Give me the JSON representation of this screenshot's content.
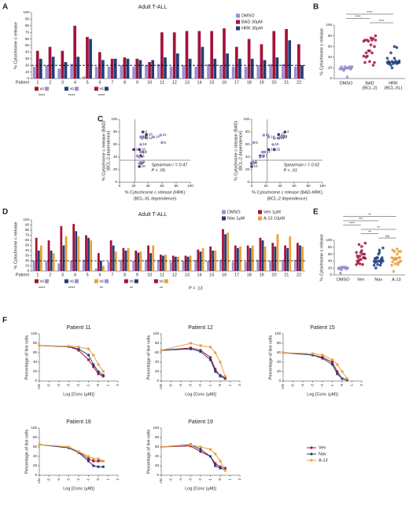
{
  "chart_data": [
    {
      "panel": "A",
      "type": "bar",
      "title": "Adult T-ALL",
      "ylabel": "% Cytochrome c release",
      "category_label": "Patient",
      "categories": [
        "1",
        "2",
        "3",
        "4",
        "5",
        "6",
        "7",
        "8",
        "9",
        "10",
        "11",
        "12",
        "13",
        "14",
        "15",
        "16",
        "17",
        "18",
        "19",
        "20",
        "21",
        "22"
      ],
      "series": [
        {
          "name": "DMSO",
          "color": "#9b8fd1",
          "values": [
            18,
            20,
            15,
            22,
            3,
            18,
            18,
            20,
            18,
            20,
            22,
            18,
            20,
            18,
            22,
            20,
            18,
            18,
            20,
            22,
            22,
            18
          ]
        },
        {
          "name": "BAD 30μM",
          "color": "#a3123a",
          "values": [
            42,
            48,
            42,
            80,
            63,
            40,
            30,
            32,
            30,
            25,
            70,
            70,
            72,
            72,
            72,
            76,
            48,
            60,
            52,
            72,
            75,
            52
          ]
        },
        {
          "name": "HRK 30μM",
          "color": "#1f3f7a",
          "values": [
            30,
            33,
            25,
            33,
            60,
            28,
            30,
            30,
            28,
            28,
            32,
            38,
            30,
            48,
            30,
            38,
            30,
            30,
            28,
            32,
            58,
            20
          ]
        }
      ],
      "threshold": 20,
      "ylim": [
        0,
        100
      ],
      "yticks": [
        0,
        10,
        20,
        30,
        40,
        50,
        60,
        70,
        80,
        90,
        100
      ],
      "comparison_label": "vs",
      "significance": [
        "****",
        "****",
        "****"
      ]
    },
    {
      "panel": "B",
      "type": "dot",
      "ylabel": "% Cytochrome c release",
      "categories": [
        "DMSO",
        "BAD",
        "HRK"
      ],
      "category_notes": [
        null,
        "(BCL-2)",
        "(BCL-XL)"
      ],
      "ylim": [
        0,
        100
      ],
      "yticks": [
        0,
        20,
        40,
        60,
        80,
        100
      ],
      "significance": [
        "****",
        "****",
        "****"
      ]
    },
    {
      "panel": "C",
      "type": "scatter",
      "xlabel": "% Cytochrome c release (HRK)",
      "xlabel_note": "(BCL-XL dependence)",
      "ylabel": "% Cytochrome c release (BAD)",
      "ylabel_note": "(BCL-2 dependence)",
      "xlim": [
        0,
        100
      ],
      "ylim": [
        0,
        100
      ],
      "xticks": [
        0,
        20,
        40,
        60,
        80,
        100
      ],
      "yticks": [
        0,
        20,
        40,
        60,
        80,
        100
      ],
      "annotations": [
        "Spearman r = 0.47",
        "P < .05"
      ]
    },
    {
      "type": "scatter",
      "xlabel": "% Cytochrome c release (BAD-HRK)",
      "xlabel_note": "(BCL-2 dependence)",
      "ylabel": "% Cytochrome c release (BAD)",
      "ylabel_note": "(BCL-2 dependence)",
      "x": [
        12,
        15,
        17,
        47,
        3,
        12,
        0,
        2,
        2,
        0,
        38,
        32,
        42,
        24,
        42,
        38,
        18,
        30,
        24,
        40,
        17,
        32
      ],
      "xlim": [
        0,
        100
      ],
      "ylim": [
        0,
        100
      ],
      "xticks": [
        0,
        20,
        40,
        60,
        80,
        100
      ],
      "yticks": [
        0,
        20,
        40,
        60,
        80,
        100
      ],
      "annotations": [
        "Spearman r = 0.62",
        "P < .01"
      ]
    },
    {
      "panel": "D",
      "type": "bar",
      "title": "Adult T-ALL",
      "ylabel": "% Cytochrome c release",
      "category_label": "Patient",
      "categories": [
        "1",
        "2",
        "3",
        "4",
        "5",
        "6",
        "7",
        "8",
        "9",
        "10",
        "11",
        "12",
        "13",
        "14",
        "15",
        "16",
        "17",
        "18",
        "19",
        "20",
        "21",
        "22"
      ],
      "series": [
        {
          "name": "DMSO",
          "color": "#9b8fd1",
          "values": [
            20,
            20,
            15,
            20,
            22,
            5,
            18,
            22,
            20,
            22,
            22,
            18,
            20,
            22,
            20,
            22,
            18,
            18,
            22,
            20,
            22,
            22
          ]
        },
        {
          "name": "Ven 1μM",
          "color": "#a3123a",
          "values": [
            65,
            60,
            88,
            92,
            70,
            35,
            60,
            45,
            40,
            50,
            32,
            30,
            30,
            42,
            48,
            82,
            50,
            50,
            65,
            55,
            50,
            55
          ]
        },
        {
          "name": "Nav 1μM",
          "color": "#1f3f7a",
          "values": [
            40,
            40,
            50,
            78,
            65,
            20,
            50,
            40,
            36,
            35,
            30,
            28,
            28,
            38,
            40,
            72,
            45,
            45,
            60,
            48,
            45,
            50
          ]
        },
        {
          "name": "A-13 10μM",
          "color": "#e8a03a",
          "values": [
            50,
            35,
            68,
            68,
            60,
            10,
            38,
            45,
            38,
            50,
            32,
            28,
            30,
            45,
            40,
            75,
            48,
            50,
            48,
            72,
            68,
            48
          ]
        }
      ],
      "threshold": 20,
      "ylim": [
        0,
        100
      ],
      "yticks": [
        0,
        10,
        20,
        30,
        40,
        50,
        60,
        70,
        80,
        90,
        100
      ],
      "comparison_label": "vs",
      "significance": [
        "****",
        "****",
        "**",
        "**",
        "**",
        "P = .13"
      ]
    },
    {
      "panel": "E",
      "type": "dot",
      "ylabel": "% Cytochrome c release",
      "categories": [
        "DMSO",
        "Ven",
        "Nav",
        "A-13"
      ],
      "ylim": [
        0,
        100
      ],
      "yticks": [
        0,
        20,
        40,
        60,
        80,
        100
      ],
      "significance": [
        "**",
        "***",
        "****",
        "**",
        "**",
        "ns"
      ]
    },
    {
      "panel": "F",
      "type": "line",
      "title": "Patient 11",
      "ylabel": "Percentage of live cells",
      "xlabel": "Log [Conc (μM)]",
      "x": [
        -6,
        -3,
        -2,
        -1,
        -0.5,
        0,
        0.5
      ],
      "xlim": [
        -6,
        2
      ],
      "xticks": [
        {
          "value": -6,
          "label": "UN"
        },
        -5,
        -4,
        -3,
        -2,
        -1,
        0,
        1,
        2
      ],
      "ylim": [
        0,
        100
      ],
      "yticks": [
        0,
        20,
        40,
        60,
        80,
        100
      ],
      "series": [
        {
          "color": "#a3123a",
          "values": [
            75,
            73,
            65,
            45,
            30,
            15,
            10
          ]
        },
        {
          "color": "#1f3f7a",
          "values": [
            75,
            73,
            68,
            55,
            35,
            20,
            12
          ]
        },
        {
          "color": "#e8a03a",
          "values": [
            75,
            74,
            72,
            68,
            55,
            35,
            20
          ]
        }
      ]
    },
    {
      "type": "line",
      "title": "Patient 12",
      "ylabel": "Percentage of live cells",
      "xlabel": "Log [Conc (μM)]",
      "x": [
        -6,
        -3,
        -2,
        -1,
        -0.5,
        0,
        0.5
      ],
      "xlim": [
        -6,
        2
      ],
      "xticks": [
        {
          "value": -6,
          "label": "UN"
        },
        -5,
        -4,
        -3,
        -2,
        -1,
        0,
        1,
        2
      ],
      "ylim": [
        0,
        100
      ],
      "yticks": [
        0,
        20,
        40,
        60,
        80,
        100
      ],
      "series": [
        {
          "color": "#a3123a",
          "values": [
            65,
            70,
            65,
            50,
            25,
            10,
            5
          ]
        },
        {
          "color": "#1f3f7a",
          "values": [
            65,
            68,
            62,
            45,
            20,
            12,
            8
          ]
        },
        {
          "color": "#e8a03a",
          "values": [
            65,
            80,
            75,
            72,
            60,
            40,
            10
          ]
        }
      ]
    },
    {
      "type": "line",
      "title": "Patient 15",
      "ylabel": "Percentage of live cells",
      "xlabel": "Log [Conc (μM)]",
      "x": [
        -6,
        -3,
        -2,
        -1,
        -0.5,
        0,
        0.5
      ],
      "xlim": [
        -6,
        2
      ],
      "xticks": [
        {
          "value": -6,
          "label": "UN"
        },
        -5,
        -4,
        -3,
        -2,
        -1,
        0,
        1,
        2
      ],
      "ylim": [
        0,
        100
      ],
      "yticks": [
        0,
        20,
        40,
        60,
        80,
        100
      ],
      "series": [
        {
          "color": "#a3123a",
          "values": [
            60,
            55,
            50,
            40,
            20,
            5,
            2
          ]
        },
        {
          "color": "#1f3f7a",
          "values": [
            60,
            55,
            48,
            35,
            15,
            5,
            3
          ]
        },
        {
          "color": "#e8a03a",
          "values": [
            60,
            58,
            55,
            45,
            35,
            20,
            5
          ]
        }
      ]
    },
    {
      "type": "line",
      "title": "Patient 16",
      "ylabel": "Percentage of live cells",
      "xlabel": "Log [Conc (μM)]",
      "x": [
        -6,
        -3,
        -2,
        -1,
        -0.5,
        0,
        0.5
      ],
      "xlim": [
        -6,
        2
      ],
      "xticks": [
        {
          "value": -6,
          "label": "UN"
        },
        -5,
        -4,
        -3,
        -2,
        -1,
        0,
        1,
        2
      ],
      "ylim": [
        0,
        100
      ],
      "yticks": [
        0,
        20,
        40,
        60,
        80,
        100
      ],
      "series": [
        {
          "color": "#a3123a",
          "values": [
            65,
            60,
            50,
            35,
            30,
            30,
            30
          ]
        },
        {
          "color": "#1f3f7a",
          "values": [
            65,
            58,
            48,
            30,
            20,
            18,
            18
          ]
        },
        {
          "color": "#e8a03a",
          "values": [
            65,
            60,
            50,
            40,
            35,
            35,
            30
          ]
        }
      ]
    },
    {
      "type": "line",
      "title": "Patient 19",
      "ylabel": "Percentage of live cells",
      "xlabel": "Log [Conc (μM)]",
      "x": [
        -6,
        -3,
        -2,
        -1,
        -0.5,
        0,
        0.5
      ],
      "xlim": [
        -6,
        2
      ],
      "xticks": [
        {
          "value": -6,
          "label": "UN"
        },
        -5,
        -4,
        -3,
        -2,
        -1,
        0,
        1,
        2
      ],
      "ylim": [
        0,
        100
      ],
      "yticks": [
        0,
        20,
        40,
        60,
        80,
        100
      ],
      "series": [
        {
          "name": "Ven",
          "color": "#a3123a",
          "values": [
            60,
            62,
            50,
            40,
            25,
            18,
            15
          ]
        },
        {
          "name": "Nav",
          "color": "#1f3f7a",
          "values": [
            60,
            65,
            55,
            40,
            20,
            15,
            12
          ]
        },
        {
          "name": "A-13",
          "color": "#e8a03a",
          "values": [
            60,
            64,
            60,
            55,
            45,
            30,
            10
          ]
        }
      ]
    }
  ]
}
